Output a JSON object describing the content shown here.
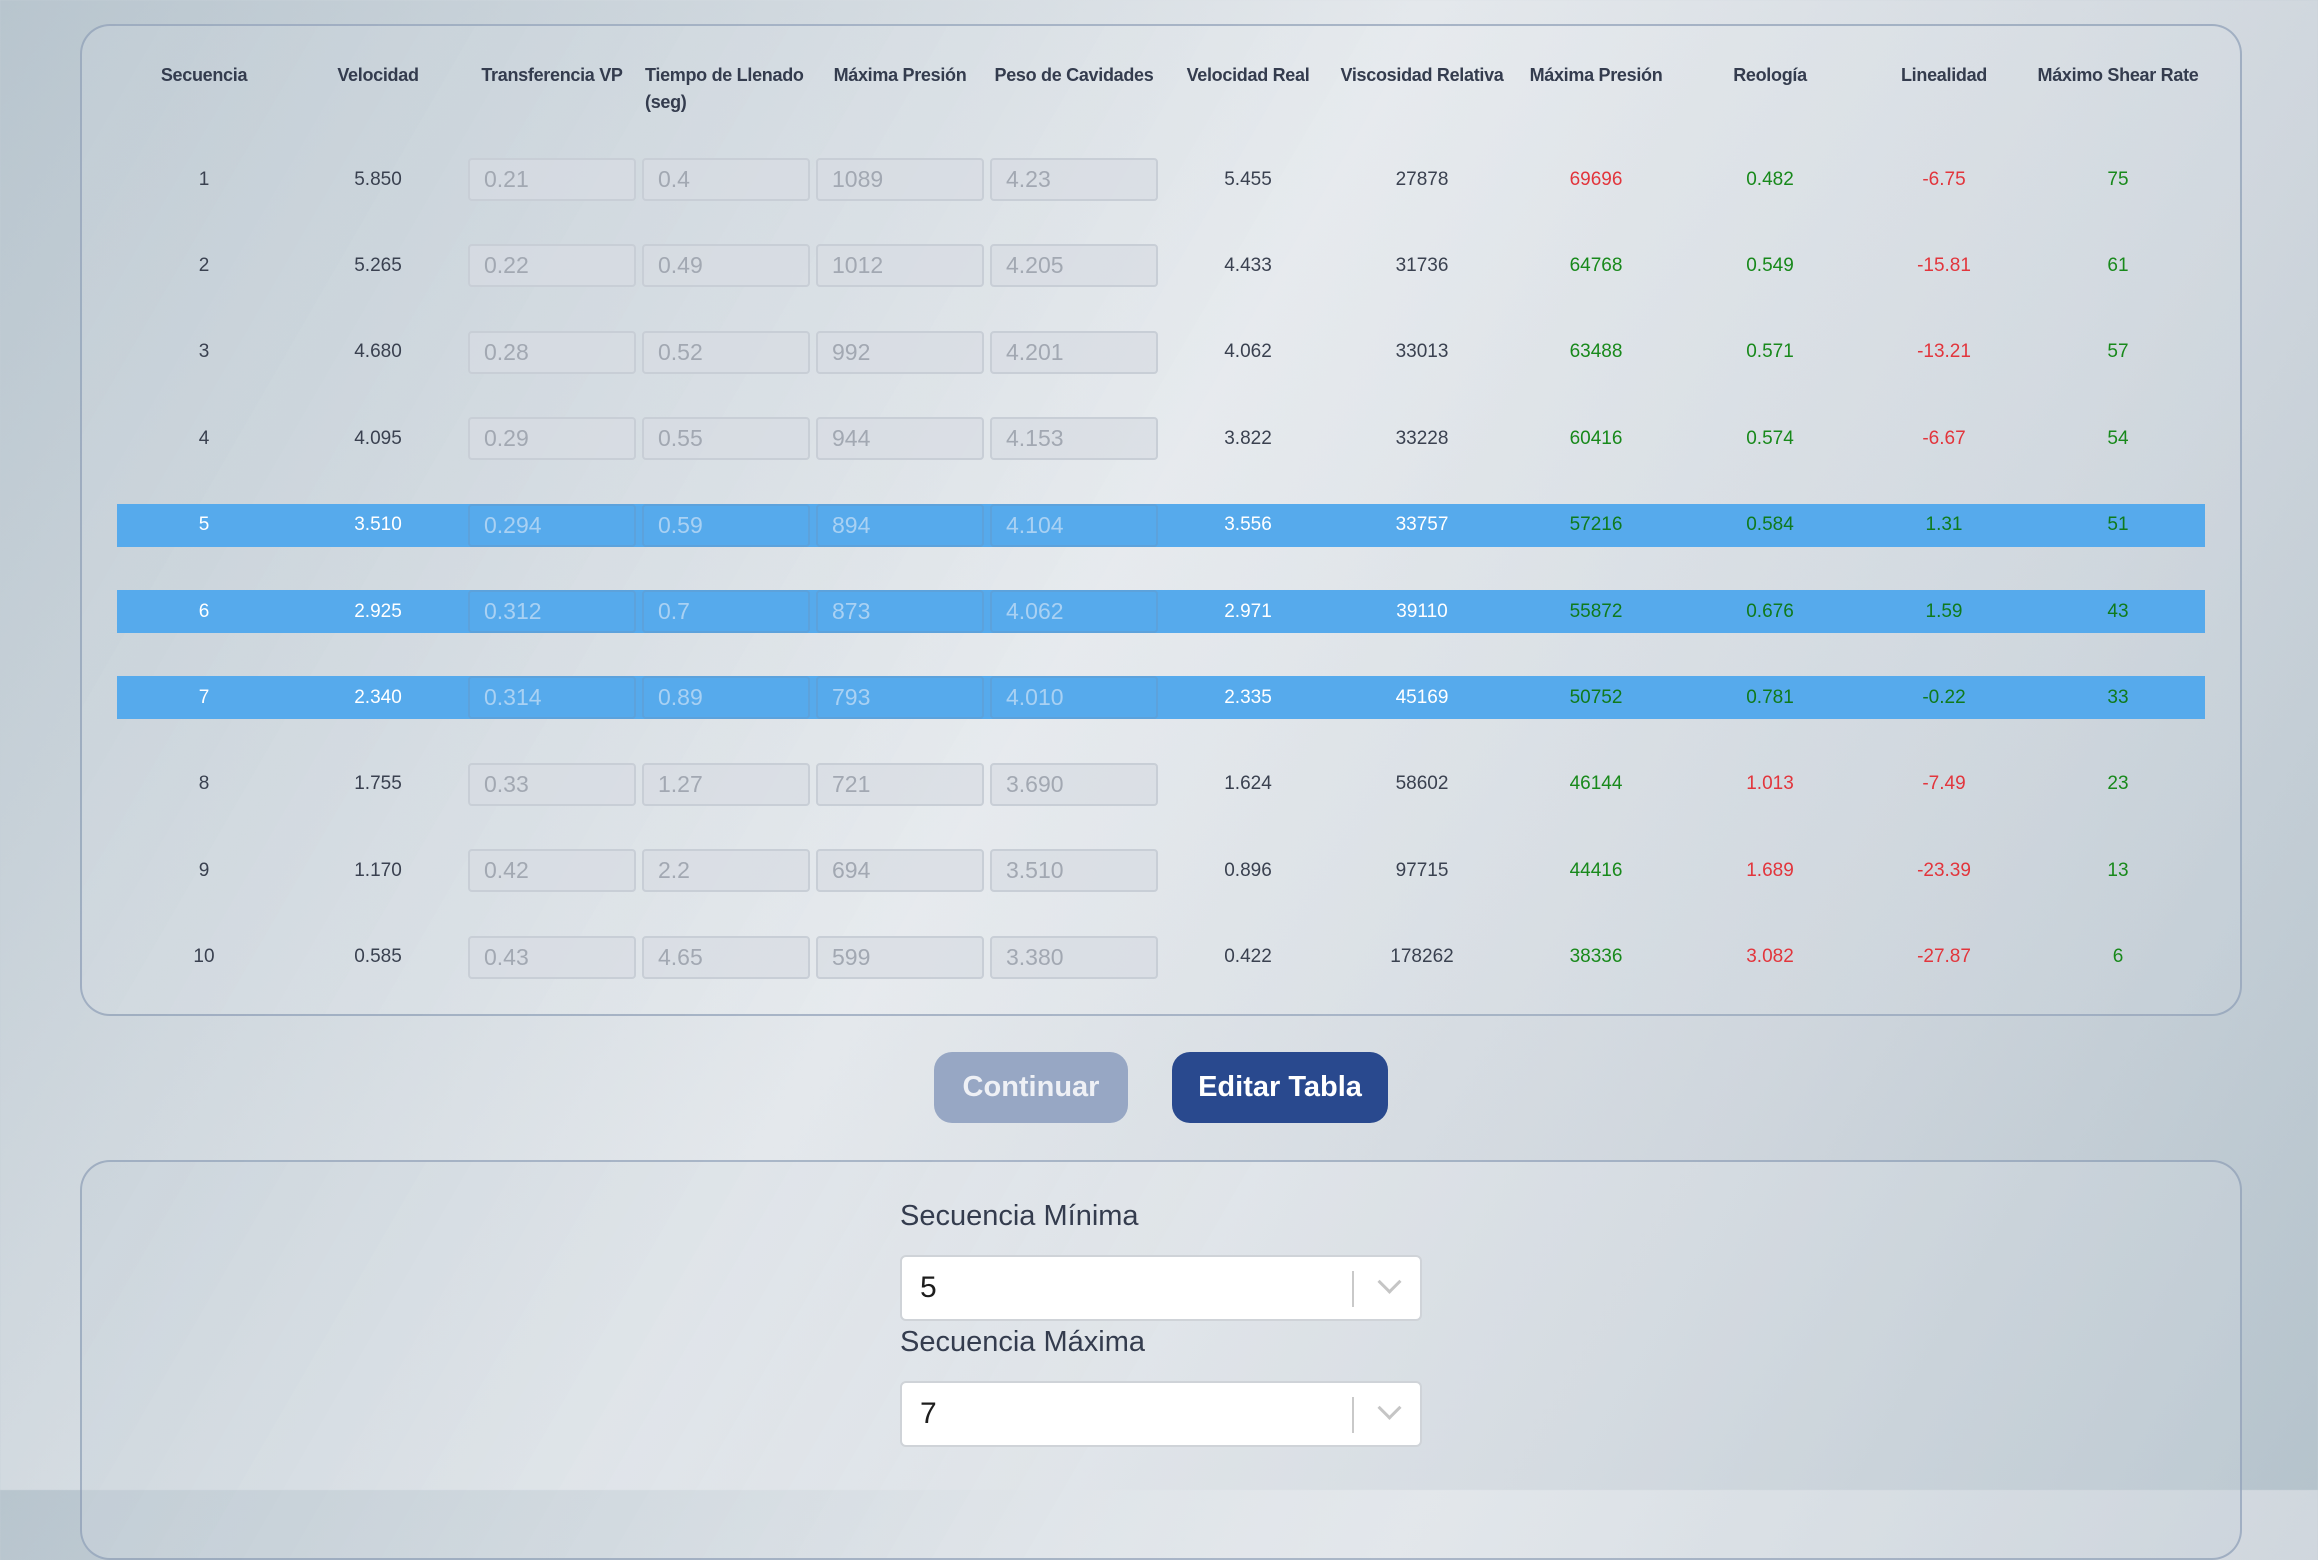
{
  "colors": {
    "highlight": "#56aaec",
    "good": "#18891b",
    "bad": "#e2353c",
    "primary_button": "#29498e",
    "disabled_button": "#97a7c4"
  },
  "table": {
    "headers": [
      "Secuencia",
      "Velocidad",
      "Transferencia VP",
      "Tiempo de Llenado (seg)",
      "Máxima Presión",
      "Peso de Cavidades",
      "Velocidad Real",
      "Viscosidad Relativa",
      "Máxima Presión",
      "Reología",
      "Linealidad",
      "Máximo Shear Rate"
    ],
    "rows": [
      {
        "selected": false,
        "cells": [
          "1",
          "5.850",
          "0.21",
          "0.4",
          "1089",
          "4.23",
          "5.455",
          "27878",
          "69696",
          "0.482",
          "-6.75",
          "75"
        ],
        "status": [
          "r",
          "g",
          "r",
          "g"
        ]
      },
      {
        "selected": false,
        "cells": [
          "2",
          "5.265",
          "0.22",
          "0.49",
          "1012",
          "4.205",
          "4.433",
          "31736",
          "64768",
          "0.549",
          "-15.81",
          "61"
        ],
        "status": [
          "g",
          "g",
          "r",
          "g"
        ]
      },
      {
        "selected": false,
        "cells": [
          "3",
          "4.680",
          "0.28",
          "0.52",
          "992",
          "4.201",
          "4.062",
          "33013",
          "63488",
          "0.571",
          "-13.21",
          "57"
        ],
        "status": [
          "g",
          "g",
          "r",
          "g"
        ]
      },
      {
        "selected": false,
        "cells": [
          "4",
          "4.095",
          "0.29",
          "0.55",
          "944",
          "4.153",
          "3.822",
          "33228",
          "60416",
          "0.574",
          "-6.67",
          "54"
        ],
        "status": [
          "g",
          "g",
          "r",
          "g"
        ]
      },
      {
        "selected": true,
        "cells": [
          "5",
          "3.510",
          "0.294",
          "0.59",
          "894",
          "4.104",
          "3.556",
          "33757",
          "57216",
          "0.584",
          "1.31",
          "51"
        ],
        "status": [
          "g",
          "g",
          "g",
          "g"
        ]
      },
      {
        "selected": true,
        "cells": [
          "6",
          "2.925",
          "0.312",
          "0.7",
          "873",
          "4.062",
          "2.971",
          "39110",
          "55872",
          "0.676",
          "1.59",
          "43"
        ],
        "status": [
          "g",
          "g",
          "g",
          "g"
        ]
      },
      {
        "selected": true,
        "cells": [
          "7",
          "2.340",
          "0.314",
          "0.89",
          "793",
          "4.010",
          "2.335",
          "45169",
          "50752",
          "0.781",
          "-0.22",
          "33"
        ],
        "status": [
          "g",
          "g",
          "g",
          "g"
        ]
      },
      {
        "selected": false,
        "cells": [
          "8",
          "1.755",
          "0.33",
          "1.27",
          "721",
          "3.690",
          "1.624",
          "58602",
          "46144",
          "1.013",
          "-7.49",
          "23"
        ],
        "status": [
          "g",
          "r",
          "r",
          "g"
        ]
      },
      {
        "selected": false,
        "cells": [
          "9",
          "1.170",
          "0.42",
          "2.2",
          "694",
          "3.510",
          "0.896",
          "97715",
          "44416",
          "1.689",
          "-23.39",
          "13"
        ],
        "status": [
          "g",
          "r",
          "r",
          "g"
        ]
      },
      {
        "selected": false,
        "cells": [
          "10",
          "0.585",
          "0.43",
          "4.65",
          "599",
          "3.380",
          "0.422",
          "178262",
          "38336",
          "3.082",
          "-27.87",
          "6"
        ],
        "status": [
          "g",
          "r",
          "r",
          "g"
        ]
      }
    ]
  },
  "actions": {
    "continue_label": "Continuar",
    "edit_label": "Editar Tabla"
  },
  "filters": {
    "min_label": "Secuencia Mínima",
    "min_value": "5",
    "max_label": "Secuencia Máxima",
    "max_value": "7",
    "chevron_icon": "chevron-down-icon"
  }
}
